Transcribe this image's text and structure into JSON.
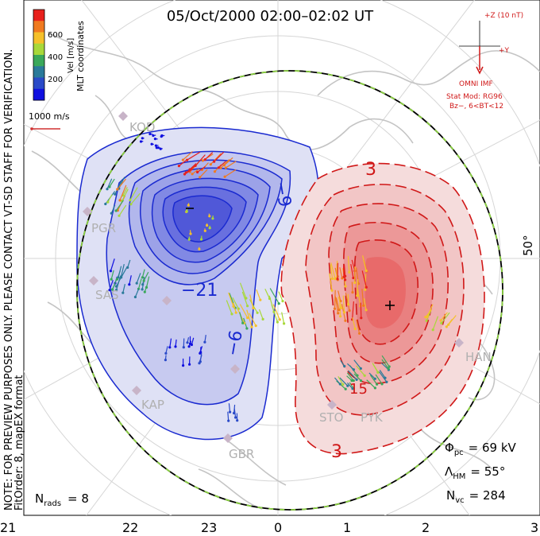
{
  "title": "05/Oct/2000 02:00–02:02 UT",
  "left_note_1": "NOTE: FOR PREVIEW PURPOSES ONLY. PLEASE CONTACT VT-SD STAFF FOR VERIFICATION.",
  "left_note_2": "FitOrder: 8, mapEX format",
  "color_bar": {
    "title": "MLT coordinates",
    "unit": "Vel [m/s]",
    "ticks": [
      "600",
      "400",
      "200"
    ],
    "colors": [
      "#e8201c",
      "#f07a20",
      "#f5c02a",
      "#a8d83a",
      "#3aa85a",
      "#2a7a9a",
      "#2a4ac8",
      "#1010e0"
    ]
  },
  "vector_scale": {
    "label": "1000 m/s"
  },
  "imf": {
    "clock_label": "+Z (10 nT)",
    "y_label": "+Y",
    "source": "OMNI IMF",
    "stat_model": "Stat Mod: RG96",
    "condition": "Bz−, 6<BT<12"
  },
  "latitude_label": "50°",
  "contour_labels": {
    "neg_9": "−9",
    "neg_21": "−21",
    "neg_6": "−6",
    "pos_3_top": "3",
    "pos_15": "15",
    "pos_3_bottom": "3"
  },
  "stations": [
    "KOD",
    "PGR",
    "SAS",
    "KAP",
    "GBR",
    "STO",
    "PYK",
    "HAN"
  ],
  "stats": {
    "phi_symbol": "Φ",
    "phi_sub": "pc",
    "phi_value": "= 69 kV",
    "lambda_symbol": "Λ",
    "lambda_sub": "HM",
    "lambda_value": "= 55°",
    "nvc_symbol": "N",
    "nvc_sub": "vc",
    "nvc_value": "= 284",
    "nrads_symbol": "N",
    "nrads_sub": "rads",
    "nrads_value": "= 8"
  },
  "mlt_axis": [
    "21",
    "22",
    "23",
    "0",
    "1",
    "2",
    "3"
  ],
  "colors": {
    "negative_cell": "#3a4ae0",
    "positive_cell": "#e84040",
    "negative_contour": "#1a2ad0",
    "positive_contour": "#d01818",
    "coastline": "#c4c4c4",
    "boundary_green": "#8ad040"
  }
}
